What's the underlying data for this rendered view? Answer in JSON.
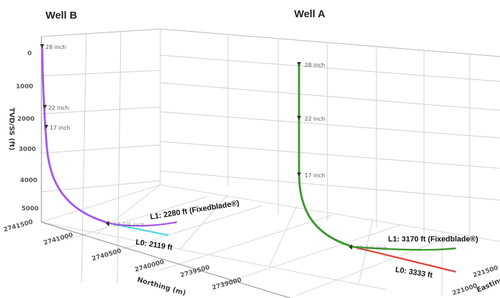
{
  "titles": {
    "well_b": "Well B",
    "well_a": "Well A"
  },
  "colors": {
    "well_b_path": "#a45be8",
    "well_a_path": "#3b9a2e",
    "well_b_l0": "#4fd8e8",
    "well_a_l0": "#e0453a",
    "grid": "#cfcfcf",
    "marker": "#333333"
  },
  "axes": {
    "tvd_label": "TVD/SS (ft)",
    "tvd_ticks": [
      "0",
      "1000",
      "2000",
      "3000",
      "4000",
      "5000"
    ],
    "northing_label": "Northing (m)",
    "northing_ticks": [
      "2741500",
      "2741000",
      "2740500",
      "2740000",
      "2739500",
      "2739000"
    ],
    "easting_label": "Easting (m)",
    "easting_ticks": [
      "221500",
      "221000"
    ]
  },
  "well_b": {
    "casings": [
      "28 inch",
      "22 inch",
      "17 inch",
      "12 1/4 inch"
    ],
    "l1_label": "L1: 2280 ft (Fixedblade®)",
    "l0_label": "L0: 2119 ft"
  },
  "well_a": {
    "casings": [
      "28 inch",
      "22 inch",
      "17 inch",
      "12 1/4 inch"
    ],
    "l1_label": "L1: 3170 ft (Fixedblade®)",
    "l0_label": "L0: 3333 ft"
  }
}
